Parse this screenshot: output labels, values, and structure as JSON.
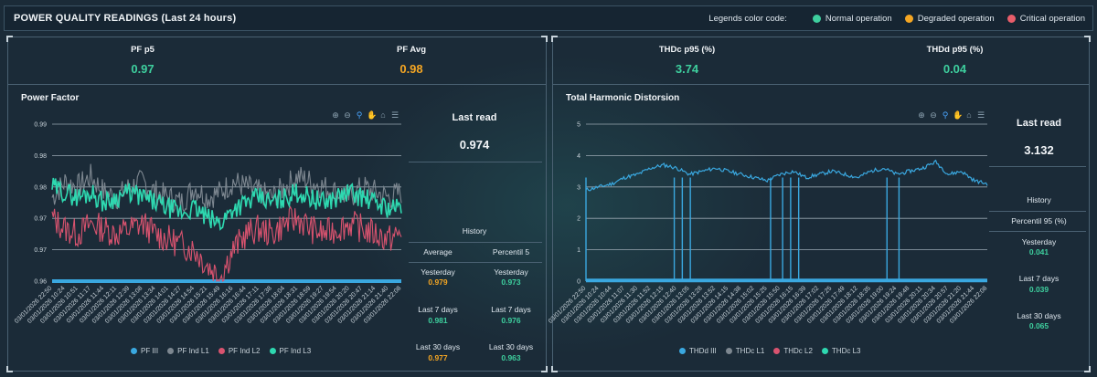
{
  "header": {
    "title": "POWER QUALITY READINGS (Last 24 hours)",
    "legend_label": "Legends color code:",
    "legend_items": [
      {
        "label": "Normal operation",
        "color": "#3ecf9e"
      },
      {
        "label": "Degraded operation",
        "color": "#f5a623"
      },
      {
        "label": "Critical operation",
        "color": "#e85d6a"
      }
    ]
  },
  "colors": {
    "normal": "#3ecf9e",
    "degraded": "#f5a623",
    "critical": "#e85d6a",
    "series_iii": "#3aa8e0",
    "series_l1": "#7d8790",
    "series_l2": "#d9536f",
    "series_l3": "#2ed8b0"
  },
  "left": {
    "kpis": [
      {
        "label": "PF p5",
        "value": "0.97",
        "status": "normal"
      },
      {
        "label": "PF Avg",
        "value": "0.98",
        "status": "degraded"
      }
    ],
    "chart_title": "Power Factor",
    "last_read_label": "Last read",
    "last_read_value": "0.974",
    "history_label": "History",
    "col_headers": [
      "Average",
      "Percentil 5"
    ],
    "rows": [
      {
        "period": "Yesterday",
        "a": "0.979",
        "a_status": "degraded",
        "b": "0.973",
        "b_status": "normal"
      },
      {
        "period": "Last 7 days",
        "a": "0.981",
        "a_status": "normal",
        "b": "0.976",
        "b_status": "normal"
      },
      {
        "period": "Last 30 days",
        "a": "0.977",
        "a_status": "degraded",
        "b": "0.963",
        "b_status": "normal"
      }
    ],
    "legend": [
      "PF III",
      "PF Ind L1",
      "PF Ind L2",
      "PF Ind L3"
    ]
  },
  "right": {
    "kpis": [
      {
        "label": "THDc p95 (%)",
        "value": "3.74",
        "status": "normal"
      },
      {
        "label": "THDd p95 (%)",
        "value": "0.04",
        "status": "normal"
      }
    ],
    "chart_title": "Total Harmonic Distorsion",
    "last_read_label": "Last read",
    "last_read_value": "3.132",
    "history_label": "History",
    "col_header": "Percentil 95 (%)",
    "rows": [
      {
        "period": "Yesterday",
        "v": "0.041",
        "status": "normal"
      },
      {
        "period": "Last 7 days",
        "v": "0.039",
        "status": "normal"
      },
      {
        "period": "Last 30 days",
        "v": "0.065",
        "status": "normal"
      }
    ],
    "legend": [
      "THDd III",
      "THDc L1",
      "THDc L2",
      "THDc L3"
    ]
  },
  "chart_data": [
    {
      "type": "line",
      "title": "Power Factor",
      "ylim": [
        0.96,
        0.99
      ],
      "y_ticks": [
        "0.96",
        "0.97",
        "0.97",
        "0.98",
        "0.98",
        "0.99"
      ],
      "x_ticks": [
        "03/01/2026 22:50",
        "03/01/2026 10:24",
        "03/01/2026 10:51",
        "03/01/2026 11:17",
        "03/01/2026 11:44",
        "03/01/2026 12:11",
        "03/01/2026 12:39",
        "03/01/2026 13:08",
        "03/01/2026 13:34",
        "03/01/2026 14:01",
        "03/01/2026 14:27",
        "03/01/2026 14:54",
        "03/01/2026 15:21",
        "03/01/2026 15:49",
        "03/01/2026 16:16",
        "03/01/2026 16:44",
        "03/01/2026 17:11",
        "03/01/2026 17:38",
        "03/01/2026 18:04",
        "03/01/2026 18:31",
        "03/01/2026 18:59",
        "03/01/2026 19:27",
        "03/01/2026 19:54",
        "03/01/2026 20:20",
        "03/01/2026 20:47",
        "03/01/2026 21:14",
        "03/01/2026 21:40",
        "03/01/2026 22:08"
      ],
      "series": [
        {
          "name": "PF III",
          "values": [
            0.96,
            0.96
          ]
        },
        {
          "name": "PF Ind L1",
          "values": [
            0.976,
            0.979,
            0.978,
            0.98,
            0.977,
            0.976,
            0.978,
            0.979,
            0.977,
            0.976,
            0.975,
            0.978,
            0.976,
            0.977,
            0.979,
            0.978,
            0.977,
            0.976,
            0.978,
            0.98,
            0.979,
            0.978,
            0.977,
            0.976,
            0.978,
            0.977,
            0.976,
            0.977
          ]
        },
        {
          "name": "PF Ind L2",
          "values": [
            0.972,
            0.97,
            0.969,
            0.971,
            0.97,
            0.969,
            0.97,
            0.971,
            0.969,
            0.968,
            0.967,
            0.966,
            0.963,
            0.961,
            0.966,
            0.969,
            0.97,
            0.969,
            0.971,
            0.972,
            0.97,
            0.969,
            0.97,
            0.971,
            0.97,
            0.969,
            0.968,
            0.969
          ]
        },
        {
          "name": "PF Ind L3",
          "values": [
            0.978,
            0.977,
            0.976,
            0.977,
            0.975,
            0.976,
            0.977,
            0.976,
            0.975,
            0.974,
            0.973,
            0.974,
            0.972,
            0.971,
            0.974,
            0.975,
            0.976,
            0.975,
            0.976,
            0.977,
            0.976,
            0.975,
            0.976,
            0.977,
            0.976,
            0.975,
            0.974,
            0.974
          ]
        }
      ]
    },
    {
      "type": "line",
      "title": "Total Harmonic Distorsion",
      "ylim": [
        0,
        5
      ],
      "y_ticks": [
        "0",
        "1",
        "2",
        "3",
        "4",
        "5"
      ],
      "x_ticks": [
        "03/01/2026 22:50",
        "03/01/2026 10:24",
        "03/01/2026 10:44",
        "03/01/2026 11:07",
        "03/01/2026 11:30",
        "03/01/2026 11:52",
        "03/01/2026 12:15",
        "03/01/2026 12:40",
        "03/01/2026 13:05",
        "03/01/2026 13:28",
        "03/01/2026 13:52",
        "03/01/2026 14:15",
        "03/01/2026 14:38",
        "03/01/2026 15:02",
        "03/01/2026 15:25",
        "03/01/2026 15:50",
        "03/01/2026 16:15",
        "03/01/2026 16:39",
        "03/01/2026 17:02",
        "03/01/2026 17:25",
        "03/01/2026 17:49",
        "03/01/2026 18:12",
        "03/01/2026 18:35",
        "03/01/2026 19:00",
        "03/01/2026 19:24",
        "03/01/2026 19:48",
        "03/01/2026 20:11",
        "03/01/2026 20:34",
        "03/01/2026 20:57",
        "03/01/2026 21:20",
        "03/01/2026 21:44",
        "03/01/2026 22:08"
      ],
      "series": [
        {
          "name": "THDd III",
          "values": [
            0.02,
            0.02
          ]
        },
        {
          "name": "THDc L1",
          "values": [
            2.9,
            3.0,
            3.1,
            3.3,
            3.4,
            3.6,
            3.7,
            3.6,
            3.4,
            3.5,
            3.6,
            3.5,
            3.4,
            3.3,
            3.2,
            3.4,
            3.5,
            3.3,
            3.4,
            3.5,
            3.4,
            3.3,
            3.5,
            3.6,
            3.4,
            3.5,
            3.6,
            3.8,
            3.4,
            3.5,
            3.2,
            3.1
          ]
        },
        {
          "name": "THDc L2",
          "values": []
        },
        {
          "name": "THDc L3",
          "values": []
        }
      ]
    }
  ]
}
